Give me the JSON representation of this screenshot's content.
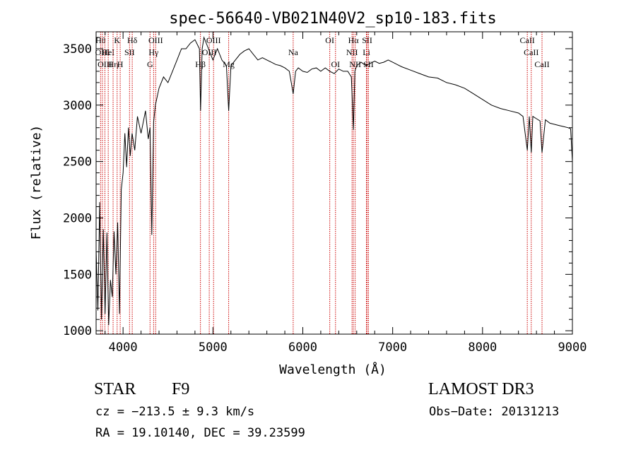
{
  "chart_data": {
    "type": "line",
    "title": "spec-56640-VB021N40V2_sp10-183.fits",
    "xlabel": "Wavelength (Å)",
    "ylabel": "Flux (relative)",
    "xlim": [
      3700,
      9000
    ],
    "ylim": [
      970,
      3650
    ],
    "x_ticks": [
      4000,
      5000,
      6000,
      7000,
      8000,
      9000
    ],
    "x_tick_labels": [
      "4000",
      "5000",
      "6000",
      "7000",
      "8000",
      "9000"
    ],
    "y_ticks": [
      1000,
      1500,
      2000,
      2500,
      3000,
      3500
    ],
    "y_tick_labels": [
      "1000",
      "1500",
      "2000",
      "2500",
      "3000",
      "3500"
    ],
    "grid": false,
    "line_color": "#000000",
    "marker_color": "#cc0000",
    "series": [
      {
        "x": [
          3700,
          3720,
          3740,
          3760,
          3780,
          3800,
          3820,
          3840,
          3860,
          3880,
          3900,
          3920,
          3940,
          3960,
          3980,
          4000,
          4020,
          4040,
          4060,
          4080,
          4100,
          4130,
          4160,
          4200,
          4250,
          4280,
          4300,
          4320,
          4340,
          4360,
          4400,
          4450,
          4500,
          4550,
          4600,
          4650,
          4700,
          4750,
          4800,
          4850,
          4862,
          4880,
          4900,
          4950,
          5000,
          5050,
          5100,
          5150,
          5175,
          5200,
          5250,
          5300,
          5350,
          5400,
          5450,
          5500,
          5550,
          5600,
          5650,
          5700,
          5750,
          5800,
          5850,
          5893,
          5920,
          5950,
          6000,
          6050,
          6100,
          6150,
          6200,
          6250,
          6300,
          6350,
          6400,
          6450,
          6500,
          6540,
          6563,
          6580,
          6600,
          6650,
          6700,
          6750,
          6800,
          6850,
          6900,
          6950,
          7000,
          7050,
          7100,
          7200,
          7300,
          7400,
          7500,
          7600,
          7700,
          7800,
          7900,
          8000,
          8100,
          8200,
          8300,
          8400,
          8450,
          8498,
          8520,
          8542,
          8560,
          8600,
          8640,
          8662,
          8700,
          8750,
          8800,
          8850,
          8900,
          8950,
          8980,
          9000
        ],
        "y": [
          1720,
          1180,
          2140,
          1100,
          1900,
          1150,
          1870,
          1050,
          1450,
          1300,
          1880,
          1500,
          1960,
          1150,
          2250,
          2400,
          2750,
          2450,
          2800,
          2550,
          2750,
          2600,
          2900,
          2750,
          2950,
          2700,
          2800,
          1850,
          2850,
          3000,
          3150,
          3250,
          3200,
          3300,
          3400,
          3500,
          3500,
          3550,
          3580,
          3500,
          2950,
          3500,
          3600,
          3500,
          3400,
          3500,
          3400,
          3350,
          2950,
          3350,
          3400,
          3450,
          3480,
          3500,
          3450,
          3400,
          3420,
          3400,
          3380,
          3360,
          3350,
          3330,
          3300,
          3100,
          3300,
          3330,
          3300,
          3290,
          3320,
          3330,
          3300,
          3330,
          3300,
          3280,
          3320,
          3300,
          3300,
          3250,
          2780,
          3300,
          3350,
          3380,
          3350,
          3370,
          3390,
          3370,
          3380,
          3400,
          3380,
          3360,
          3340,
          3310,
          3280,
          3250,
          3240,
          3200,
          3180,
          3150,
          3100,
          3050,
          3000,
          2970,
          2950,
          2930,
          2900,
          2600,
          2900,
          2580,
          2900,
          2880,
          2860,
          2580,
          2870,
          2840,
          2830,
          2820,
          2810,
          2800,
          2790,
          2500
        ]
      }
    ],
    "line_markers": [
      {
        "x": 3750,
        "label": "Hθ",
        "row": 1
      },
      {
        "x": 3770,
        "label": "OIII",
        "row": 2
      },
      {
        "x": 3798,
        "label": "OIII",
        "row": 3
      },
      {
        "x": 3835,
        "label": "HeI",
        "row": 2
      },
      {
        "x": 3889,
        "label": "Hη",
        "row": 3
      },
      {
        "x": 3934,
        "label": "K",
        "row": 1
      },
      {
        "x": 3968,
        "label": "H",
        "row": 3
      },
      {
        "x": 4072,
        "label": "SII",
        "row": 2
      },
      {
        "x": 4102,
        "label": "Hδ",
        "row": 1
      },
      {
        "x": 4300,
        "label": "G",
        "row": 3
      },
      {
        "x": 4340,
        "label": "Hγ",
        "row": 2
      },
      {
        "x": 4363,
        "label": "OIII",
        "row": 1
      },
      {
        "x": 4861,
        "label": "Hβ",
        "row": 3
      },
      {
        "x": 4959,
        "label": "OIII",
        "row": 2
      },
      {
        "x": 5007,
        "label": "OIII",
        "row": 1
      },
      {
        "x": 5175,
        "label": "Mg",
        "row": 3
      },
      {
        "x": 5893,
        "label": "Na",
        "row": 2
      },
      {
        "x": 6300,
        "label": "OI",
        "row": 1
      },
      {
        "x": 6364,
        "label": "OI",
        "row": 3
      },
      {
        "x": 6548,
        "label": "NII",
        "row": 2
      },
      {
        "x": 6563,
        "label": "Hα",
        "row": 1
      },
      {
        "x": 6583,
        "label": "NII",
        "row": 3
      },
      {
        "x": 6708,
        "label": "Li",
        "row": 2
      },
      {
        "x": 6716,
        "label": "SII",
        "row": 1
      },
      {
        "x": 6731,
        "label": "SII",
        "row": 3
      },
      {
        "x": 8498,
        "label": "CaII",
        "row": 1
      },
      {
        "x": 8542,
        "label": "CaII",
        "row": 2
      },
      {
        "x": 8662,
        "label": "CaII",
        "row": 3
      }
    ]
  },
  "info": {
    "object_class": "STAR",
    "subclass": "F9",
    "survey": "LAMOST DR3",
    "cz": "cz = −213.5 ± 9.3 km/s",
    "obs_date": "Obs−Date: 20131213",
    "coords": "RA =  19.10140, DEC =  39.23599"
  }
}
